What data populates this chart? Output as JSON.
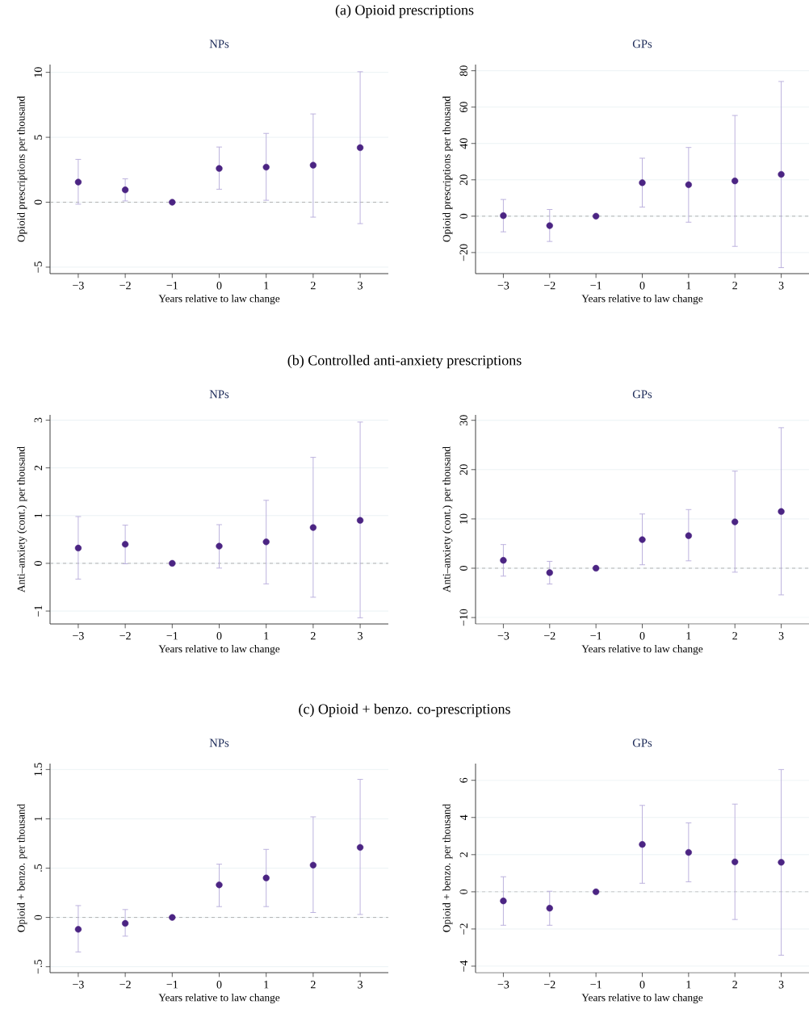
{
  "chart_data": [
    {
      "type": "scatter",
      "title": "NPs",
      "xlabel": "Years relative to law change",
      "ylabel": "Opioid prescriptions per thousand",
      "annotations": [
        "(a) Opioid prescriptions"
      ],
      "x": [
        -3,
        -2,
        -1,
        0,
        1,
        2,
        3
      ],
      "xlim": [
        -3.6,
        3.6
      ],
      "xticks": [
        {
          "value": -3,
          "label": "−3"
        },
        {
          "value": -2,
          "label": "−2"
        },
        {
          "value": -1,
          "label": "−1"
        },
        0,
        1,
        2,
        3
      ],
      "ylim": [
        -5.5,
        10.6
      ],
      "yticks": [
        {
          "value": -5,
          "label": "−5"
        },
        0,
        5,
        10
      ],
      "grid": "y",
      "marker": "circle",
      "ref_lines": [
        {
          "axis": "y",
          "value": 0,
          "color": "#a0a0a0",
          "line_style": "dashed"
        }
      ],
      "series": [
        {
          "color": "#4b2483",
          "values": [
            1.55,
            0.95,
            0,
            2.6,
            2.7,
            2.85,
            4.2
          ],
          "errors": [
            [
              -0.15,
              3.3
            ],
            [
              0.1,
              1.8
            ],
            null,
            [
              1.0,
              4.25
            ],
            [
              0.15,
              5.3
            ],
            [
              -1.15,
              6.8
            ],
            [
              -1.65,
              10.05
            ]
          ]
        }
      ]
    },
    {
      "type": "scatter",
      "title": "GPs",
      "xlabel": "Years relative to law change",
      "ylabel": "Opioid prescriptions per thousand",
      "x": [
        -3,
        -2,
        -1,
        0,
        1,
        2,
        3
      ],
      "xlim": [
        -3.6,
        3.6
      ],
      "xticks": [
        {
          "value": -3,
          "label": "−3"
        },
        {
          "value": -2,
          "label": "−2"
        },
        {
          "value": -1,
          "label": "−1"
        },
        0,
        1,
        2,
        3
      ],
      "ylim": [
        -31.6,
        83.4
      ],
      "yticks": [
        {
          "value": -20,
          "label": "−20"
        },
        0,
        20,
        40,
        60,
        80
      ],
      "grid": "y",
      "marker": "circle",
      "ref_lines": [
        {
          "axis": "y",
          "value": 0,
          "color": "#a0a0a0",
          "line_style": "dashed"
        }
      ],
      "series": [
        {
          "color": "#4b2483",
          "values": [
            0.3,
            -5.2,
            0,
            18.4,
            17.3,
            19.4,
            23.0
          ],
          "errors": [
            [
              -8.6,
              9.2
            ],
            [
              -13.9,
              3.7
            ],
            null,
            [
              5.0,
              31.9
            ],
            [
              -3.3,
              37.8
            ],
            [
              -16.6,
              55.4
            ],
            [
              -28.3,
              74.1
            ]
          ]
        }
      ]
    },
    {
      "type": "scatter",
      "title": "NPs",
      "xlabel": "Years relative to law change",
      "ylabel": "Anti–anxiety (cont.) per thousand",
      "annotations": [
        "(b) Controlled anti-anxiety prescriptions"
      ],
      "x": [
        -3,
        -2,
        -1,
        0,
        1,
        2,
        3
      ],
      "xlim": [
        -3.6,
        3.6
      ],
      "xticks": [
        {
          "value": -3,
          "label": "−3"
        },
        {
          "value": -2,
          "label": "−2"
        },
        {
          "value": -1,
          "label": "−1"
        },
        0,
        1,
        2,
        3
      ],
      "ylim": [
        -1.27,
        3.11
      ],
      "yticks": [
        {
          "value": -1,
          "label": "−1"
        },
        0,
        1,
        2,
        3
      ],
      "grid": "y",
      "marker": "circle",
      "ref_lines": [
        {
          "axis": "y",
          "value": 0,
          "color": "#a0a0a0",
          "line_style": "dashed"
        }
      ],
      "series": [
        {
          "color": "#4b2483",
          "values": [
            0.32,
            0.4,
            0,
            0.36,
            0.45,
            0.75,
            0.9
          ],
          "errors": [
            [
              -0.33,
              0.98
            ],
            [
              -0.01,
              0.8
            ],
            null,
            [
              -0.1,
              0.81
            ],
            [
              -0.43,
              1.32
            ],
            [
              -0.71,
              2.22
            ],
            [
              -1.14,
              2.96
            ]
          ]
        }
      ]
    },
    {
      "type": "scatter",
      "title": "GPs",
      "xlabel": "Years relative to law change",
      "ylabel": "Anti–anxiety (cont.) per thousand",
      "x": [
        -3,
        -2,
        -1,
        0,
        1,
        2,
        3
      ],
      "xlim": [
        -3.6,
        3.6
      ],
      "xticks": [
        {
          "value": -3,
          "label": "−3"
        },
        {
          "value": -2,
          "label": "−2"
        },
        {
          "value": -1,
          "label": "−1"
        },
        0,
        1,
        2,
        3
      ],
      "ylim": [
        -11.3,
        31.1
      ],
      "yticks": [
        {
          "value": -10,
          "label": "−10"
        },
        0,
        10,
        20,
        30
      ],
      "grid": "y",
      "marker": "circle",
      "ref_lines": [
        {
          "axis": "y",
          "value": 0,
          "color": "#a0a0a0",
          "line_style": "dashed"
        }
      ],
      "series": [
        {
          "color": "#4b2483",
          "values": [
            1.6,
            -0.9,
            0,
            5.8,
            6.6,
            9.4,
            11.5
          ],
          "errors": [
            [
              -1.6,
              4.8
            ],
            [
              -3.2,
              1.4
            ],
            null,
            [
              0.7,
              11.0
            ],
            [
              1.5,
              11.9
            ],
            [
              -0.8,
              19.7
            ],
            [
              -5.4,
              28.5
            ]
          ]
        }
      ]
    },
    {
      "type": "scatter",
      "title": "NPs",
      "xlabel": "Years relative to law change",
      "ylabel": "Opioid + benzo. per thousand",
      "annotations": [
        "(c) Opioid + benzo. co-prescriptions"
      ],
      "x": [
        -3,
        -2,
        -1,
        0,
        1,
        2,
        3
      ],
      "xlim": [
        -3.6,
        3.6
      ],
      "xticks": [
        {
          "value": -3,
          "label": "−3"
        },
        {
          "value": -2,
          "label": "−2"
        },
        {
          "value": -1,
          "label": "−1"
        },
        0,
        1,
        2,
        3
      ],
      "ylim": [
        -0.56,
        1.56
      ],
      "yticks": [
        {
          "value": -0.5,
          "label": "−.5"
        },
        0,
        {
          "value": 0.5,
          "label": ".5"
        },
        1,
        1.5
      ],
      "grid": "y",
      "marker": "circle",
      "ref_lines": [
        {
          "axis": "y",
          "value": 0,
          "color": "#a0a0a0",
          "line_style": "dashed"
        }
      ],
      "series": [
        {
          "color": "#4b2483",
          "values": [
            -0.12,
            -0.06,
            0,
            0.33,
            0.4,
            0.53,
            0.71
          ],
          "errors": [
            [
              -0.35,
              0.12
            ],
            [
              -0.19,
              0.08
            ],
            null,
            [
              0.11,
              0.54
            ],
            [
              0.11,
              0.69
            ],
            [
              0.05,
              1.02
            ],
            [
              0.03,
              1.4
            ]
          ]
        }
      ]
    },
    {
      "type": "scatter",
      "title": "GPs",
      "xlabel": "Years relative to law change",
      "ylabel": "Opioid + benzo. per thousand",
      "x": [
        -3,
        -2,
        -1,
        0,
        1,
        2,
        3
      ],
      "xlim": [
        -3.6,
        3.6
      ],
      "xticks": [
        {
          "value": -3,
          "label": "−3"
        },
        {
          "value": -2,
          "label": "−2"
        },
        {
          "value": -1,
          "label": "−1"
        },
        0,
        1,
        2,
        3
      ],
      "ylim": [
        -4.35,
        6.9
      ],
      "yticks": [
        {
          "value": -4,
          "label": "−4"
        },
        {
          "value": -2,
          "label": "−2"
        },
        0,
        2,
        4,
        6
      ],
      "grid": "y",
      "marker": "circle",
      "ref_lines": [
        {
          "axis": "y",
          "value": 0,
          "color": "#a0a0a0",
          "line_style": "dashed"
        }
      ],
      "series": [
        {
          "color": "#4b2483",
          "values": [
            -0.49,
            -0.88,
            0,
            2.55,
            2.12,
            1.61,
            1.59
          ],
          "errors": [
            [
              -1.8,
              0.81
            ],
            [
              -1.8,
              0.03
            ],
            null,
            [
              0.46,
              4.65
            ],
            [
              0.54,
              3.71
            ],
            [
              -1.49,
              4.72
            ],
            [
              -3.41,
              6.58
            ]
          ]
        }
      ]
    }
  ]
}
